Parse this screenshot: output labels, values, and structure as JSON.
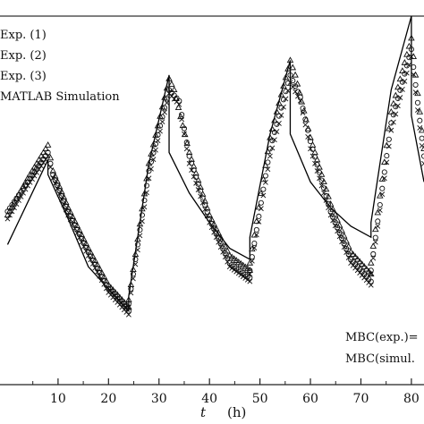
{
  "chart_data": {
    "type": "line",
    "xlabel_symbol": "t",
    "xlabel_unit": "(h)",
    "xticks": [
      10,
      20,
      30,
      40,
      50,
      60,
      70,
      80
    ],
    "xlim": [
      -1.5,
      82.5
    ],
    "ylim": [
      0,
      1
    ],
    "legend": {
      "placement": "top-left",
      "entries": [
        "Exp. (1)",
        "Exp. (2)",
        "Exp. (3)",
        "MATLAB Simulation"
      ]
    },
    "annotations": [
      "MBC(exp.)=",
      "MBC(simul."
    ],
    "series": [
      {
        "name": "MATLAB Simulation",
        "marker": "line",
        "x": [
          0,
          8,
          8,
          12,
          16,
          20,
          24,
          24,
          28,
          32,
          32,
          36,
          40,
          44,
          48,
          48,
          52,
          56,
          56,
          60,
          64,
          68,
          72,
          72,
          76,
          80,
          80,
          82.5
        ],
        "y": [
          0.38,
          0.61,
          0.57,
          0.45,
          0.32,
          0.26,
          0.2,
          0.24,
          0.6,
          0.84,
          0.63,
          0.52,
          0.44,
          0.37,
          0.34,
          0.4,
          0.68,
          0.88,
          0.68,
          0.55,
          0.48,
          0.43,
          0.4,
          0.44,
          0.8,
          1.0,
          0.73,
          0.55
        ]
      },
      {
        "name": "Exp. (1)",
        "marker": "circle",
        "x": [
          0,
          4,
          8,
          9,
          12,
          16,
          20,
          24,
          24,
          28,
          32,
          34,
          36,
          40,
          44,
          48,
          48,
          52,
          56,
          58,
          60,
          64,
          68,
          72,
          72,
          76,
          80,
          82.5
        ],
        "y": [
          0.47,
          0.55,
          0.63,
          0.57,
          0.47,
          0.36,
          0.26,
          0.2,
          0.22,
          0.58,
          0.8,
          0.77,
          0.62,
          0.45,
          0.33,
          0.29,
          0.31,
          0.64,
          0.84,
          0.78,
          0.66,
          0.47,
          0.34,
          0.28,
          0.31,
          0.71,
          0.91,
          0.62
        ]
      },
      {
        "name": "Exp. (2)",
        "marker": "triangle",
        "x": [
          0,
          4,
          8,
          9,
          12,
          16,
          20,
          24,
          24,
          28,
          32,
          33,
          36,
          40,
          44,
          48,
          48,
          52,
          56,
          57,
          60,
          64,
          68,
          72,
          72,
          76,
          80,
          82.5
        ],
        "y": [
          0.46,
          0.56,
          0.65,
          0.58,
          0.48,
          0.37,
          0.27,
          0.21,
          0.23,
          0.6,
          0.83,
          0.8,
          0.63,
          0.46,
          0.35,
          0.31,
          0.33,
          0.67,
          0.88,
          0.84,
          0.67,
          0.49,
          0.36,
          0.3,
          0.33,
          0.74,
          0.94,
          0.64
        ]
      },
      {
        "name": "Exp. (3)",
        "marker": "cross",
        "x": [
          0,
          4,
          8,
          9,
          12,
          16,
          20,
          24,
          24,
          28,
          32,
          34,
          36,
          40,
          44,
          48,
          48,
          52,
          56,
          58,
          60,
          64,
          68,
          72,
          72,
          76,
          80,
          82.5
        ],
        "y": [
          0.45,
          0.54,
          0.62,
          0.56,
          0.46,
          0.35,
          0.25,
          0.19,
          0.21,
          0.56,
          0.79,
          0.76,
          0.6,
          0.44,
          0.32,
          0.28,
          0.3,
          0.62,
          0.82,
          0.77,
          0.64,
          0.46,
          0.33,
          0.27,
          0.3,
          0.69,
          0.89,
          0.6
        ]
      }
    ]
  }
}
